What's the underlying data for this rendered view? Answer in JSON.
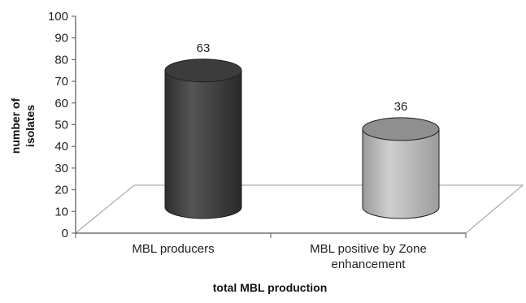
{
  "chart_data": {
    "type": "bar",
    "categories": [
      [
        "MBL producers"
      ],
      [
        "MBL positive by Zone",
        "enhancement"
      ]
    ],
    "values": [
      63,
      36
    ],
    "data_labels": [
      "63",
      "36"
    ],
    "ylabel": [
      "number of",
      "isolates"
    ],
    "xlabel": "total MBL production",
    "ylim": [
      0,
      100
    ],
    "yticks": [
      "0",
      "10",
      "20",
      "30",
      "40",
      "50",
      "60",
      "70",
      "80",
      "90",
      "100"
    ],
    "grid": false,
    "colors": {
      "MBL producers": "#4a4a4a",
      "MBL positive by Zone enhancement": "#b8b8b8"
    }
  }
}
